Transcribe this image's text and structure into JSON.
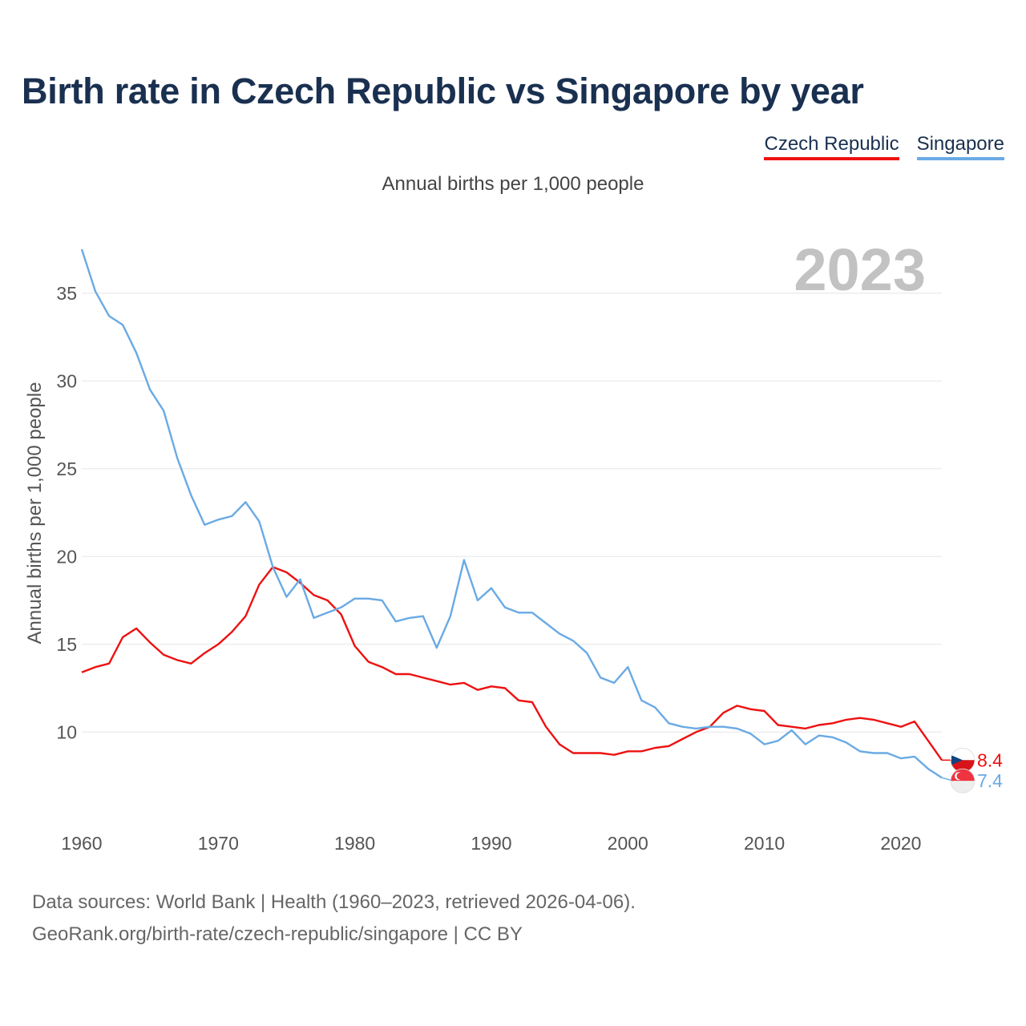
{
  "title": "Birth rate in Czech Republic vs Singapore by year",
  "subtitle": "Annual births per 1,000 people",
  "legend": [
    {
      "label": "Czech Republic",
      "color": "#ee1111"
    },
    {
      "label": "Singapore",
      "color": "#6aaae4"
    }
  ],
  "source": {
    "line1": "Data sources: World Bank | Health (1960–2023, retrieved 2026-04-06).",
    "line2": "GeoRank.org/birth-rate/czech-republic/singapore | CC BY"
  },
  "chart_data": {
    "type": "line",
    "title": "Birth rate in Czech Republic vs Singapore by year",
    "ylabel": "Annual births per 1,000 people",
    "xlabel": "",
    "year_label": "2023",
    "xlim": [
      1960,
      2023
    ],
    "ylim": [
      5.4,
      37.5
    ],
    "x_ticks": [
      1960,
      1970,
      1980,
      1990,
      2000,
      2010,
      2020
    ],
    "y_ticks": [
      10,
      15,
      20,
      25,
      30,
      35
    ],
    "grid": true,
    "x": [
      1960,
      1961,
      1962,
      1963,
      1964,
      1965,
      1966,
      1967,
      1968,
      1969,
      1970,
      1971,
      1972,
      1973,
      1974,
      1975,
      1976,
      1977,
      1978,
      1979,
      1980,
      1981,
      1982,
      1983,
      1984,
      1985,
      1986,
      1987,
      1988,
      1989,
      1990,
      1991,
      1992,
      1993,
      1994,
      1995,
      1996,
      1997,
      1998,
      1999,
      2000,
      2001,
      2002,
      2003,
      2004,
      2005,
      2006,
      2007,
      2008,
      2009,
      2010,
      2011,
      2012,
      2013,
      2014,
      2015,
      2016,
      2017,
      2018,
      2019,
      2020,
      2021,
      2022,
      2023
    ],
    "series": [
      {
        "name": "Czech Republic",
        "color": "#ee1111",
        "end_label": "8.4",
        "values": [
          13.4,
          13.7,
          13.9,
          15.4,
          15.9,
          15.1,
          14.4,
          14.1,
          13.9,
          14.5,
          15.0,
          15.7,
          16.6,
          18.4,
          19.4,
          19.1,
          18.5,
          17.8,
          17.5,
          16.7,
          14.9,
          14.0,
          13.7,
          13.3,
          13.3,
          13.1,
          12.9,
          12.7,
          12.8,
          12.4,
          12.6,
          12.5,
          11.8,
          11.7,
          10.3,
          9.3,
          8.8,
          8.8,
          8.8,
          8.7,
          8.9,
          8.9,
          9.1,
          9.2,
          9.6,
          10.0,
          10.3,
          11.1,
          11.5,
          11.3,
          11.2,
          10.4,
          10.3,
          10.2,
          10.4,
          10.5,
          10.7,
          10.8,
          10.7,
          10.5,
          10.3,
          10.6,
          9.5,
          8.4
        ]
      },
      {
        "name": "Singapore",
        "color": "#6aaae4",
        "end_label": "7.4",
        "values": [
          37.5,
          35.1,
          33.7,
          33.2,
          31.6,
          29.5,
          28.3,
          25.6,
          23.5,
          21.8,
          22.1,
          22.3,
          23.1,
          22.0,
          19.4,
          17.7,
          18.7,
          16.5,
          16.8,
          17.1,
          17.6,
          17.6,
          17.5,
          16.3,
          16.5,
          16.6,
          14.8,
          16.6,
          19.8,
          17.5,
          18.2,
          17.1,
          16.8,
          16.8,
          16.2,
          15.6,
          15.2,
          14.5,
          13.1,
          12.8,
          13.7,
          11.8,
          11.4,
          10.5,
          10.3,
          10.2,
          10.3,
          10.3,
          10.2,
          9.9,
          9.3,
          9.5,
          10.1,
          9.3,
          9.8,
          9.7,
          9.4,
          8.9,
          8.8,
          8.8,
          8.5,
          8.6,
          7.9,
          7.4
        ]
      }
    ]
  }
}
